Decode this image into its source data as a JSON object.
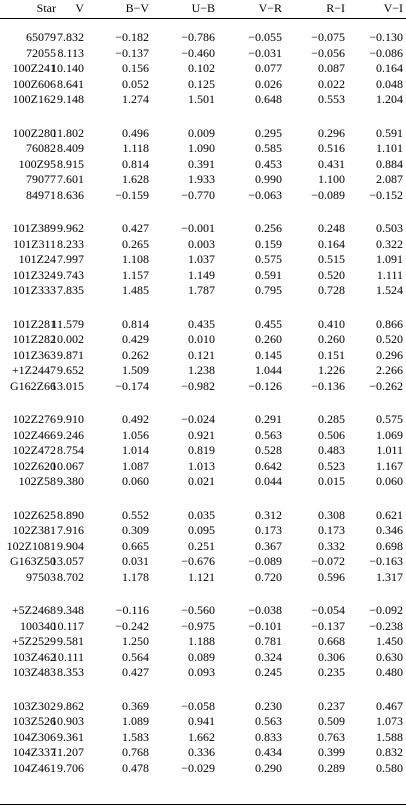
{
  "table": {
    "columns": [
      "Star",
      "V",
      "B−V",
      "U−B",
      "V−R",
      "R−I",
      "V−I"
    ],
    "groups": [
      [
        [
          "65079",
          "7.832",
          "−0.182",
          "−0.786",
          "−0.055",
          "−0.075",
          "−0.130"
        ],
        [
          "72055",
          "8.113",
          "−0.137",
          "−0.460",
          "−0.031",
          "−0.056",
          "−0.086"
        ],
        [
          "100Z241",
          "10.140",
          "0.156",
          "0.102",
          "0.077",
          "0.087",
          "0.164"
        ],
        [
          "100Z606",
          "8.641",
          "0.052",
          "0.125",
          "0.026",
          "0.022",
          "0.048"
        ],
        [
          "100Z162",
          "9.148",
          "1.274",
          "1.501",
          "0.648",
          "0.553",
          "1.204"
        ]
      ],
      [
        [
          "100Z280",
          "11.802",
          "0.496",
          "0.009",
          "0.295",
          "0.296",
          "0.591"
        ],
        [
          "76082",
          "8.409",
          "1.118",
          "1.090",
          "0.585",
          "0.516",
          "1.101"
        ],
        [
          "100Z95",
          "8.915",
          "0.814",
          "0.391",
          "0.453",
          "0.431",
          "0.884"
        ],
        [
          "79077",
          "7.601",
          "1.628",
          "1.933",
          "0.990",
          "1.100",
          "2.087"
        ],
        [
          "84971",
          "8.636",
          "−0.159",
          "−0.770",
          "−0.063",
          "−0.089",
          "−0.152"
        ]
      ],
      [
        [
          "101Z389",
          "9.962",
          "0.427",
          "−0.001",
          "0.256",
          "0.248",
          "0.503"
        ],
        [
          "101Z311",
          "8.233",
          "0.265",
          "0.003",
          "0.159",
          "0.164",
          "0.322"
        ],
        [
          "101Z24",
          "7.997",
          "1.108",
          "1.037",
          "0.575",
          "0.515",
          "1.091"
        ],
        [
          "101Z324",
          "9.743",
          "1.157",
          "1.149",
          "0.591",
          "0.520",
          "1.111"
        ],
        [
          "101Z333",
          "7.835",
          "1.485",
          "1.787",
          "0.795",
          "0.728",
          "1.524"
        ]
      ],
      [
        [
          "101Z281",
          "11.579",
          "0.814",
          "0.435",
          "0.455",
          "0.410",
          "0.866"
        ],
        [
          "101Z282",
          "10.002",
          "0.429",
          "0.010",
          "0.260",
          "0.260",
          "0.520"
        ],
        [
          "101Z363",
          "9.871",
          "0.262",
          "0.121",
          "0.145",
          "0.151",
          "0.296"
        ],
        [
          "+1Z2447",
          "9.652",
          "1.509",
          "1.238",
          "1.044",
          "1.226",
          "2.266"
        ],
        [
          "G162Z66",
          "13.015",
          "−0.174",
          "−0.982",
          "−0.126",
          "−0.136",
          "−0.262"
        ]
      ],
      [
        [
          "102Z276",
          "9.910",
          "0.492",
          "−0.024",
          "0.291",
          "0.285",
          "0.575"
        ],
        [
          "102Z466",
          "9.246",
          "1.056",
          "0.921",
          "0.563",
          "0.506",
          "1.069"
        ],
        [
          "102Z472",
          "8.754",
          "1.014",
          "0.819",
          "0.528",
          "0.483",
          "1.011"
        ],
        [
          "102Z620",
          "10.067",
          "1.087",
          "1.013",
          "0.642",
          "0.523",
          "1.167"
        ],
        [
          "102Z58",
          "9.380",
          "0.060",
          "0.021",
          "0.044",
          "0.015",
          "0.060"
        ]
      ],
      [
        [
          "102Z625",
          "8.890",
          "0.552",
          "0.035",
          "0.312",
          "0.308",
          "0.621"
        ],
        [
          "102Z381",
          "7.916",
          "0.309",
          "0.095",
          "0.173",
          "0.173",
          "0.346"
        ],
        [
          "102Z1081",
          "9.904",
          "0.665",
          "0.251",
          "0.367",
          "0.332",
          "0.698"
        ],
        [
          "G163Z50",
          "13.057",
          "0.031",
          "−0.676",
          "−0.089",
          "−0.072",
          "−0.163"
        ],
        [
          "97503",
          "8.702",
          "1.178",
          "1.121",
          "0.720",
          "0.596",
          "1.317"
        ]
      ],
      [
        [
          "+5Z2468",
          "9.348",
          "−0.116",
          "−0.560",
          "−0.038",
          "−0.054",
          "−0.092"
        ],
        [
          "100340",
          "10.117",
          "−0.242",
          "−0.975",
          "−0.101",
          "−0.137",
          "−0.238"
        ],
        [
          "+5Z2529",
          "9.581",
          "1.250",
          "1.188",
          "0.781",
          "0.668",
          "1.450"
        ],
        [
          "103Z462",
          "10.111",
          "0.564",
          "0.089",
          "0.324",
          "0.306",
          "0.630"
        ],
        [
          "103Z483",
          "8.353",
          "0.427",
          "0.093",
          "0.245",
          "0.235",
          "0.480"
        ]
      ],
      [
        [
          "103Z302",
          "9.862",
          "0.369",
          "−0.058",
          "0.230",
          "0.237",
          "0.467"
        ],
        [
          "103Z526",
          "10.903",
          "1.089",
          "0.941",
          "0.563",
          "0.509",
          "1.073"
        ],
        [
          "104Z306",
          "9.361",
          "1.583",
          "1.662",
          "0.833",
          "0.763",
          "1.588"
        ],
        [
          "104Z337",
          "11.207",
          "0.768",
          "0.336",
          "0.434",
          "0.399",
          "0.832"
        ],
        [
          "104Z461",
          "9.706",
          "0.478",
          "−0.029",
          "0.290",
          "0.289",
          "0.580"
        ]
      ]
    ]
  }
}
